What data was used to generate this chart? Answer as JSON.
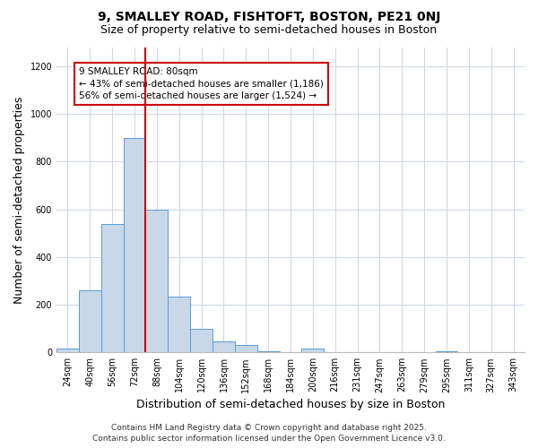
{
  "title": "9, SMALLEY ROAD, FISHTOFT, BOSTON, PE21 0NJ",
  "subtitle": "Size of property relative to semi-detached houses in Boston",
  "xlabel": "Distribution of semi-detached houses by size in Boston",
  "ylabel": "Number of semi-detached properties",
  "bar_labels": [
    "24sqm",
    "40sqm",
    "56sqm",
    "72sqm",
    "88sqm",
    "104sqm",
    "120sqm",
    "136sqm",
    "152sqm",
    "168sqm",
    "184sqm",
    "200sqm",
    "216sqm",
    "231sqm",
    "247sqm",
    "263sqm",
    "279sqm",
    "295sqm",
    "311sqm",
    "327sqm",
    "343sqm"
  ],
  "bar_values": [
    15,
    260,
    540,
    900,
    600,
    235,
    100,
    47,
    32,
    5,
    0,
    15,
    0,
    0,
    0,
    0,
    0,
    5,
    0,
    0,
    0
  ],
  "bar_color": "#c8d8e8",
  "bar_edge_color": "#5b9bd5",
  "ylim": [
    0,
    1280
  ],
  "yticks": [
    0,
    200,
    400,
    600,
    800,
    1000,
    1200
  ],
  "annotation_title": "9 SMALLEY ROAD: 80sqm",
  "annotation_line1": "← 43% of semi-detached houses are smaller (1,186)",
  "annotation_line2": "56% of semi-detached houses are larger (1,524) →",
  "annotation_box_color": "#ffffff",
  "annotation_box_edge_color": "#cc0000",
  "vline_color": "#cc0000",
  "footer1": "Contains HM Land Registry data © Crown copyright and database right 2025.",
  "footer2": "Contains public sector information licensed under the Open Government Licence v3.0.",
  "bg_color": "#ffffff",
  "grid_color": "#d0d8e8",
  "title_fontsize": 10,
  "subtitle_fontsize": 9,
  "axis_label_fontsize": 9,
  "tick_fontsize": 7,
  "footer_fontsize": 6.5,
  "vline_index": 3.5
}
